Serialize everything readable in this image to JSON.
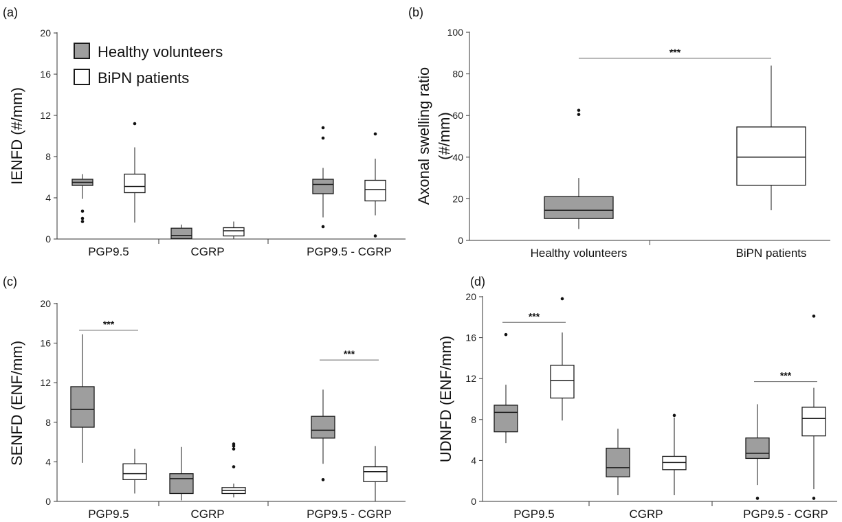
{
  "colors": {
    "healthy": "#9e9e9e",
    "bipn": "#ffffff",
    "stroke": "#1a1a1a",
    "axis": "#333333"
  },
  "legend": {
    "items": [
      {
        "label": "Healthy volunteers",
        "color": "#9e9e9e"
      },
      {
        "label": "BiPN patients",
        "color": "#ffffff"
      }
    ]
  },
  "chart_data": [
    {
      "panel": "(a)",
      "type": "box",
      "ylabel": "IENFD (#/mm)",
      "ylim": [
        0,
        20
      ],
      "yticks": [
        0,
        4,
        8,
        12,
        16,
        20
      ],
      "categories": [
        "PGP9.5",
        "CGRP",
        "PGP9.5 - CGRP"
      ],
      "series": [
        {
          "name": "Healthy volunteers",
          "boxes": [
            {
              "min": 3.9,
              "q1": 5.2,
              "median": 5.5,
              "q3": 5.8,
              "max": 6.3,
              "outliers": [
                2.7,
                2.0,
                1.7
              ]
            },
            {
              "min": 0,
              "q1": 0.05,
              "median": 0.35,
              "q3": 1.05,
              "max": 1.4,
              "outliers": []
            },
            {
              "min": 2.1,
              "q1": 4.4,
              "median": 5.3,
              "q3": 5.8,
              "max": 6.9,
              "outliers": [
                10.8,
                9.8,
                1.2
              ]
            }
          ]
        },
        {
          "name": "BiPN patients",
          "boxes": [
            {
              "min": 1.6,
              "q1": 4.5,
              "median": 5.1,
              "q3": 6.3,
              "max": 8.9,
              "outliers": [
                11.2
              ]
            },
            {
              "min": 0,
              "q1": 0.3,
              "median": 0.8,
              "q3": 1.1,
              "max": 1.7,
              "outliers": []
            },
            {
              "min": 2.3,
              "q1": 3.7,
              "median": 4.8,
              "q3": 5.7,
              "max": 7.8,
              "outliers": [
                10.2,
                0.3
              ]
            }
          ]
        }
      ],
      "significance": []
    },
    {
      "panel": "(b)",
      "type": "box",
      "ylabel": "Axonal swelling ratio (#/mm)",
      "ylim": [
        0,
        100
      ],
      "yticks": [
        0,
        20,
        40,
        60,
        80,
        100
      ],
      "categories": [
        "Healthy volunteers",
        "BiPN patients"
      ],
      "series": [
        {
          "name": "Healthy volunteers",
          "boxes": [
            {
              "min": 5.5,
              "q1": 10.5,
              "median": 14.5,
              "q3": 21,
              "max": 30,
              "outliers": [
                62.5,
                60.5
              ]
            }
          ]
        },
        {
          "name": "BiPN patients",
          "boxes": [
            {
              "min": 14.5,
              "q1": 26.5,
              "median": 40,
              "q3": 54.5,
              "max": 84,
              "outliers": []
            }
          ]
        }
      ],
      "significance": [
        {
          "label": "***",
          "from": 0,
          "to": 1,
          "y": 87.5
        }
      ]
    },
    {
      "panel": "(c)",
      "type": "box",
      "ylabel": "SENFD (ENF/mm)",
      "ylim": [
        0,
        20
      ],
      "yticks": [
        0,
        4,
        8,
        12,
        16,
        20
      ],
      "categories": [
        "PGP9.5",
        "CGRP",
        "PGP9.5 - CGRP"
      ],
      "series": [
        {
          "name": "Healthy volunteers",
          "boxes": [
            {
              "min": 3.9,
              "q1": 7.5,
              "median": 9.3,
              "q3": 11.6,
              "max": 16.9,
              "outliers": []
            },
            {
              "min": 0.1,
              "q1": 0.8,
              "median": 2.3,
              "q3": 2.8,
              "max": 5.5,
              "outliers": []
            },
            {
              "min": 3.8,
              "q1": 6.4,
              "median": 7.2,
              "q3": 8.6,
              "max": 11.3,
              "outliers": [
                2.2
              ]
            }
          ]
        },
        {
          "name": "BiPN patients",
          "boxes": [
            {
              "min": 0.8,
              "q1": 2.2,
              "median": 2.8,
              "q3": 3.8,
              "max": 5.3,
              "outliers": []
            },
            {
              "min": 0.4,
              "q1": 0.8,
              "median": 1.1,
              "q3": 1.4,
              "max": 1.8,
              "outliers": [
                5.8,
                5.6,
                5.3,
                3.5
              ]
            },
            {
              "min": 0,
              "q1": 2.0,
              "median": 3.0,
              "q3": 3.5,
              "max": 5.6,
              "outliers": []
            }
          ]
        }
      ],
      "significance": [
        {
          "label": "***",
          "cat": 0,
          "y": 17.3
        },
        {
          "label": "***",
          "cat": 2,
          "y": 14.3
        }
      ]
    },
    {
      "panel": "(d)",
      "type": "box",
      "ylabel": "UDNFD (ENF/mm)",
      "ylim": [
        0,
        20
      ],
      "yticks": [
        0,
        4,
        8,
        12,
        16,
        20
      ],
      "categories": [
        "PGP9.5",
        "CGRP",
        "PGP9.5 - CGRP"
      ],
      "series": [
        {
          "name": "Healthy volunteers",
          "boxes": [
            {
              "min": 5.7,
              "q1": 6.8,
              "median": 8.7,
              "q3": 9.4,
              "max": 11.4,
              "outliers": [
                16.3
              ]
            },
            {
              "min": 0.6,
              "q1": 2.4,
              "median": 3.3,
              "q3": 5.2,
              "max": 7.1,
              "outliers": []
            },
            {
              "min": 1.6,
              "q1": 4.2,
              "median": 4.7,
              "q3": 6.2,
              "max": 9.5,
              "outliers": [
                0.3
              ]
            }
          ]
        },
        {
          "name": "BiPN patients",
          "boxes": [
            {
              "min": 7.9,
              "q1": 10.1,
              "median": 11.8,
              "q3": 13.3,
              "max": 16.5,
              "outliers": [
                19.8
              ]
            },
            {
              "min": 0.6,
              "q1": 3.1,
              "median": 3.8,
              "q3": 4.4,
              "max": 8.2,
              "outliers": [
                8.4
              ]
            },
            {
              "min": 1.2,
              "q1": 6.4,
              "median": 8.1,
              "q3": 9.2,
              "max": 11.1,
              "outliers": [
                18.1,
                0.3
              ]
            }
          ]
        }
      ],
      "significance": [
        {
          "label": "***",
          "cat": 0,
          "y": 17.5
        },
        {
          "label": "***",
          "cat": 2,
          "y": 11.7
        }
      ]
    }
  ]
}
